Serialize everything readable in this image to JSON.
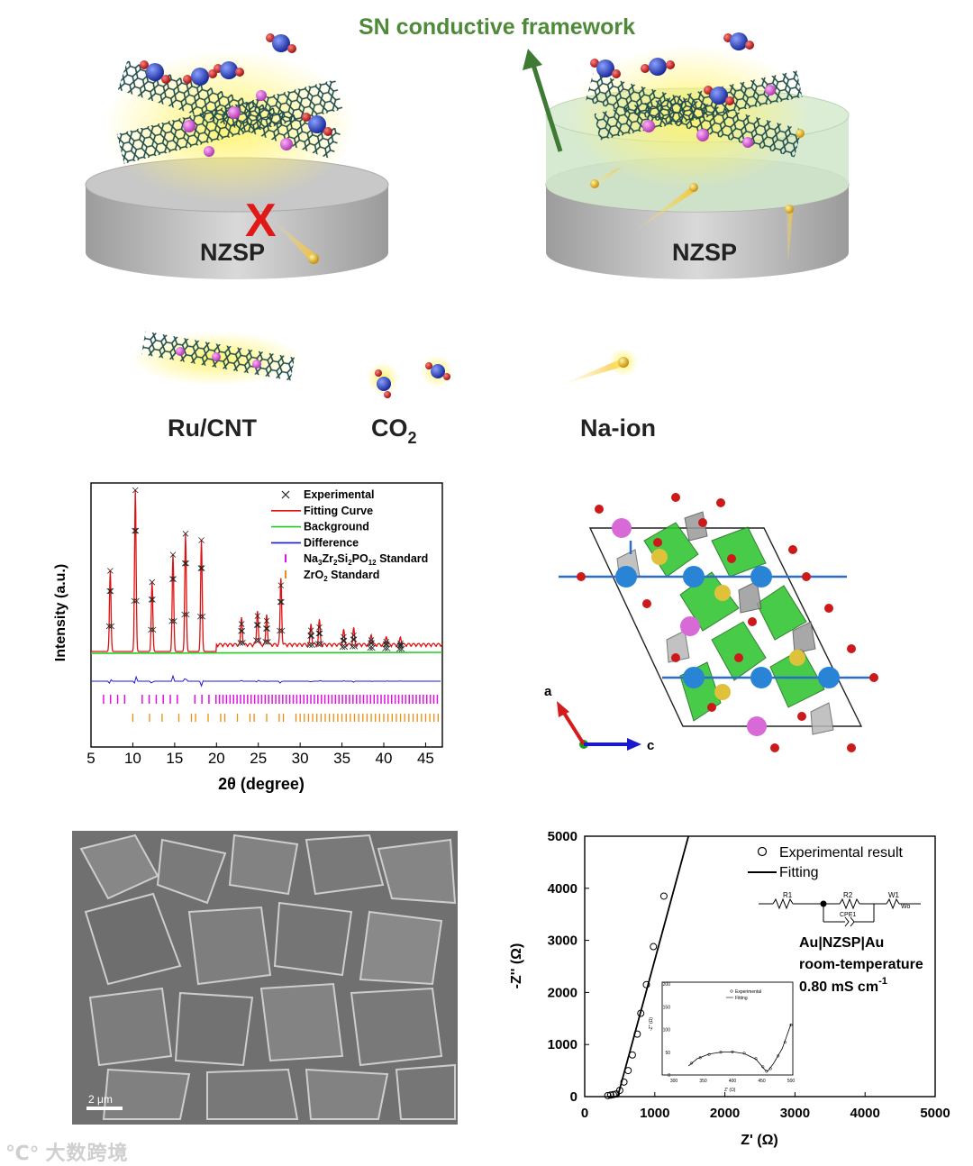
{
  "schematic": {
    "title": "SN conductive framework",
    "left_disk_label": "NZSP",
    "right_disk_label": "NZSP",
    "blocked_mark": "X",
    "legend": [
      {
        "label": "Ru/CNT"
      },
      {
        "label": "CO",
        "sub": "2"
      },
      {
        "label": "Na-ion"
      }
    ],
    "colors": {
      "arrow": "#3f7a34",
      "title": "#4e8a3a",
      "x_mark": "#e01818",
      "disk": "#bdbdbd",
      "glow": "#f6f04a"
    }
  },
  "xrd": {
    "ylabel": "Intensity (a.u.)",
    "xlabel": "2θ (degree)",
    "legend": [
      {
        "label": "Experimental",
        "color": "#222222",
        "marker": "x"
      },
      {
        "label": "Fitting Curve",
        "color": "#e01010",
        "marker": "line"
      },
      {
        "label": "Background",
        "color": "#22cc22",
        "marker": "line"
      },
      {
        "label": "Difference",
        "color": "#1a1adf",
        "marker": "line"
      },
      {
        "label": "Na3Zr2Si2PO12 Standard",
        "base": "Na",
        "parts": [
          [
            "3",
            "Zr"
          ],
          [
            "2",
            "Si"
          ],
          [
            "2",
            "PO"
          ],
          [
            "12",
            " Standard"
          ]
        ],
        "color": "#e010e0",
        "marker": "tick"
      },
      {
        "label": "ZrO2 Standard",
        "base": "ZrO",
        "parts": [
          [
            "2",
            " Standard"
          ]
        ],
        "color": "#f08a10",
        "marker": "tick"
      }
    ],
    "chart_data": {
      "type": "line",
      "x_ticks": [
        5,
        10,
        15,
        20,
        25,
        30,
        35,
        40,
        45
      ],
      "xlim": [
        5,
        47
      ],
      "peaks": [
        {
          "x": 7.3,
          "h": 0.5
        },
        {
          "x": 10.3,
          "h": 1.0
        },
        {
          "x": 12.3,
          "h": 0.43
        },
        {
          "x": 14.8,
          "h": 0.6
        },
        {
          "x": 16.3,
          "h": 0.73
        },
        {
          "x": 18.2,
          "h": 0.69
        },
        {
          "x": 23.0,
          "h": 0.17
        },
        {
          "x": 24.9,
          "h": 0.22
        },
        {
          "x": 27.7,
          "h": 0.41
        },
        {
          "x": 26.0,
          "h": 0.19
        },
        {
          "x": 31.3,
          "h": 0.13
        },
        {
          "x": 32.3,
          "h": 0.15
        },
        {
          "x": 35.2,
          "h": 0.09
        },
        {
          "x": 36.4,
          "h": 0.1
        },
        {
          "x": 38.5,
          "h": 0.07
        },
        {
          "x": 40.3,
          "h": 0.06
        },
        {
          "x": 42.0,
          "h": 0.05
        }
      ]
    }
  },
  "crystal": {
    "axis_a": "a",
    "axis_c": "c",
    "colors": {
      "octa": "#2fc42f",
      "tetra": "#9a9a9a",
      "zr": "#2a84d6",
      "o": "#cc1a1a",
      "na1": "#d86ad8",
      "na2": "#e0c23a",
      "cell": "#222222",
      "axis_a": "#d41c1c",
      "axis_c": "#1a1acc"
    }
  },
  "sem": {
    "scale_bar": "2 μm"
  },
  "eis": {
    "ylabel": "-Z'' (Ω)",
    "xlabel": "Z' (Ω)",
    "legend": [
      {
        "label": "Experimental result",
        "marker": "circle"
      },
      {
        "label": "Fitting",
        "marker": "line"
      }
    ],
    "circuit": {
      "r1": "R1",
      "r2": "R2",
      "w1": "W1",
      "wo": "Wo",
      "cpe": "CPE1"
    },
    "annotation": {
      "line1": "Au|NZSP|Au",
      "line2": "room-temperature",
      "line3": "0.80 mS cm",
      "line3_sup": "-1"
    },
    "inset": {
      "legend": [
        "Experimental",
        "Fitting"
      ],
      "ylabel": "-Z'' (Ω)",
      "xlabel": "Z' (Ω)",
      "x_ticks": [
        300,
        350,
        400,
        450,
        500
      ],
      "y_ticks": [
        0,
        50,
        100,
        150,
        200
      ]
    },
    "chart_data": {
      "type": "scatter",
      "xlabel": "Z' (Ω)",
      "ylabel": "-Z'' (Ω)",
      "xlim": [
        0,
        5000
      ],
      "ylim": [
        0,
        5000
      ],
      "x_ticks": [
        0,
        1000,
        2000,
        3000,
        4000,
        5000
      ],
      "y_ticks": [
        0,
        1000,
        2000,
        3000,
        4000,
        5000
      ],
      "series": [
        {
          "name": "Experimental result",
          "points": [
            [
              330,
              20
            ],
            [
              370,
              30
            ],
            [
              410,
              40
            ],
            [
              450,
              50
            ],
            [
              500,
              120
            ],
            [
              560,
              280
            ],
            [
              620,
              500
            ],
            [
              680,
              800
            ],
            [
              750,
              1200
            ],
            [
              800,
              1600
            ],
            [
              880,
              2150
            ],
            [
              980,
              2880
            ],
            [
              1130,
              3850
            ]
          ]
        },
        {
          "name": "Fitting",
          "points": [
            [
              330,
              0
            ],
            [
              470,
              0
            ],
            [
              1480,
              5000
            ]
          ]
        }
      ],
      "inset_series": [
        {
          "name": "Experimental",
          "points": [
            [
              330,
              26
            ],
            [
              345,
              38
            ],
            [
              360,
              45
            ],
            [
              380,
              50
            ],
            [
              400,
              51
            ],
            [
              420,
              48
            ],
            [
              440,
              36
            ],
            [
              452,
              18
            ],
            [
              458,
              8
            ],
            [
              465,
              14
            ],
            [
              478,
              42
            ],
            [
              490,
              72
            ],
            [
              500,
              110
            ]
          ]
        },
        {
          "name": "Fitting",
          "points": [
            [
              325,
              20
            ],
            [
              340,
              36
            ],
            [
              360,
              46
            ],
            [
              380,
              50
            ],
            [
              400,
              51
            ],
            [
              420,
              47
            ],
            [
              440,
              35
            ],
            [
              455,
              12
            ],
            [
              460,
              8
            ],
            [
              470,
              25
            ],
            [
              485,
              58
            ],
            [
              500,
              112
            ]
          ]
        }
      ]
    }
  }
}
